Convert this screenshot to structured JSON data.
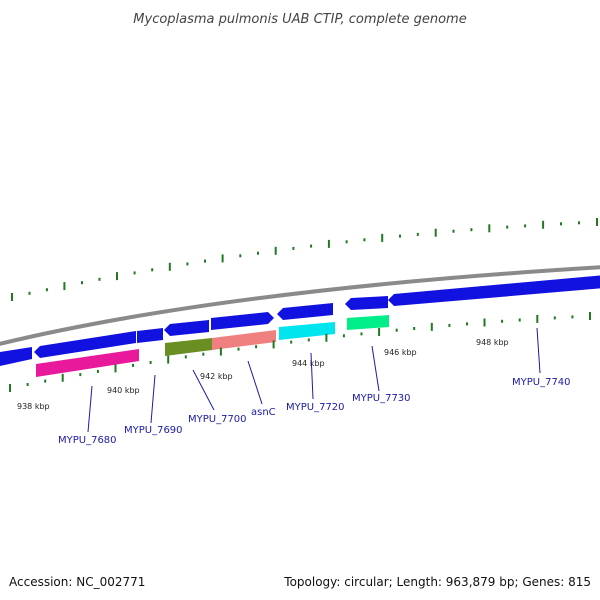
{
  "title": "Mycoplasma pulmonis UAB CTIP, complete genome",
  "footer": {
    "accession": "Accession: NC_002771",
    "summary": "Topology: circular; Length: 963,879 bp; Genes: 815"
  },
  "colors": {
    "cds_blue": "#1212e0",
    "backbone": "#8a8a8a",
    "ticks": "#1f7a1f",
    "label": "#1a1aa6"
  },
  "ticks": [
    "938 kbp",
    "940 kbp",
    "942 kbp",
    "944 kbp",
    "946 kbp",
    "948 kbp"
  ],
  "gene_labels": [
    "MYPU_7680",
    "MYPU_7690",
    "MYPU_7700",
    "asnC",
    "MYPU_7720",
    "MYPU_7730",
    "MYPU_7740"
  ],
  "genes": [
    {
      "name": "MYPU_7680",
      "color": "#e8199a"
    },
    {
      "name": "MYPU_7700",
      "color": "#6b8e23"
    },
    {
      "name": "asnC",
      "color": "#f08080"
    },
    {
      "name": "MYPU_7720",
      "color": "#00e5ee"
    },
    {
      "name": "MYPU_7730",
      "color": "#00ee8a"
    }
  ]
}
